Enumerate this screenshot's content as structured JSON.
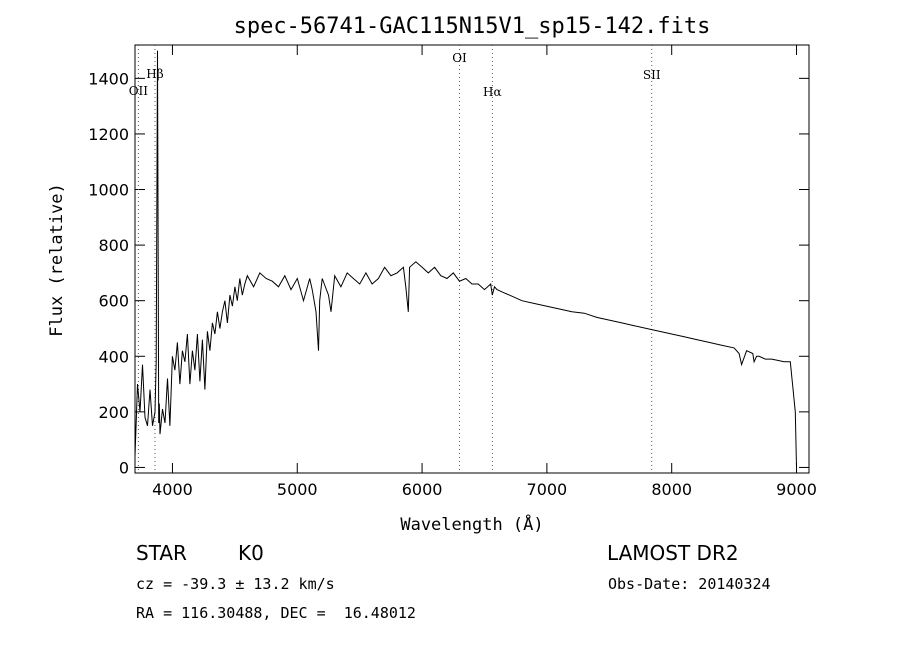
{
  "chart_data": {
    "type": "line",
    "title": "spec-56741-GAC115N15V1_sp15-142.fits",
    "xlabel": "Wavelength (Å)",
    "ylabel": "Flux (relative)",
    "xlim": [
      3700,
      9100
    ],
    "ylim": [
      -20,
      1520
    ],
    "x_ticks": [
      4000,
      5000,
      6000,
      7000,
      8000,
      9000
    ],
    "y_ticks": [
      0,
      200,
      400,
      600,
      800,
      1000,
      1200,
      1400
    ],
    "series": [
      {
        "x": [
          3700,
          3720,
          3740,
          3760,
          3780,
          3800,
          3820,
          3840,
          3860,
          3870,
          3880,
          3890,
          3895,
          3900,
          3920,
          3940,
          3960,
          3980,
          4000,
          4020,
          4040,
          4060,
          4080,
          4100,
          4120,
          4140,
          4160,
          4180,
          4200,
          4220,
          4240,
          4260,
          4280,
          4300,
          4320,
          4340,
          4360,
          4380,
          4400,
          4420,
          4440,
          4460,
          4480,
          4500,
          4520,
          4540,
          4560,
          4580,
          4600,
          4650,
          4700,
          4750,
          4800,
          4850,
          4900,
          4950,
          5000,
          5050,
          5100,
          5120,
          5150,
          5170,
          5180,
          5200,
          5250,
          5270,
          5300,
          5350,
          5400,
          5450,
          5500,
          5550,
          5600,
          5650,
          5700,
          5750,
          5800,
          5850,
          5870,
          5890,
          5900,
          5950,
          6000,
          6050,
          6100,
          6150,
          6200,
          6250,
          6300,
          6350,
          6400,
          6450,
          6500,
          6550,
          6563,
          6580,
          6600,
          6650,
          6700,
          6800,
          6900,
          7000,
          7100,
          7200,
          7300,
          7400,
          7500,
          7600,
          7700,
          7800,
          7900,
          8000,
          8100,
          8200,
          8300,
          8400,
          8500,
          8540,
          8560,
          8600,
          8650,
          8660,
          8680,
          8700,
          8750,
          8800,
          8850,
          8900,
          8950,
          8990,
          9000
        ],
        "y": [
          40,
          300,
          200,
          370,
          180,
          150,
          280,
          150,
          200,
          380,
          1500,
          160,
          230,
          120,
          210,
          160,
          320,
          150,
          400,
          350,
          450,
          300,
          420,
          380,
          480,
          300,
          420,
          350,
          480,
          310,
          460,
          280,
          490,
          420,
          520,
          480,
          560,
          500,
          560,
          600,
          520,
          620,
          580,
          650,
          600,
          680,
          620,
          660,
          690,
          650,
          700,
          680,
          670,
          650,
          690,
          640,
          680,
          600,
          680,
          640,
          560,
          420,
          600,
          680,
          620,
          560,
          690,
          650,
          700,
          680,
          660,
          700,
          660,
          680,
          720,
          690,
          700,
          720,
          650,
          560,
          720,
          740,
          720,
          700,
          720,
          690,
          680,
          700,
          670,
          680,
          660,
          660,
          640,
          660,
          620,
          650,
          640,
          630,
          620,
          600,
          590,
          580,
          570,
          560,
          555,
          540,
          530,
          520,
          510,
          500,
          490,
          480,
          470,
          460,
          450,
          440,
          430,
          410,
          370,
          420,
          410,
          380,
          400,
          400,
          390,
          390,
          385,
          380,
          380,
          200,
          0
        ]
      }
    ],
    "line_markers": [
      {
        "label": "Hβ",
        "x": 3860
      },
      {
        "label": "OII",
        "x": 3727
      },
      {
        "label": "OI",
        "x": 6300
      },
      {
        "label": "Hα",
        "x": 6563
      },
      {
        "label": "SII",
        "x": 7840
      }
    ]
  },
  "info": {
    "object_class": "STAR",
    "subclass": "K0",
    "survey": "LAMOST DR2",
    "cz": "cz = -39.3 ± 13.2 km/s",
    "obs_date": "Obs-Date: 20140324",
    "radec": "RA = 116.30488, DEC =  16.48012"
  }
}
